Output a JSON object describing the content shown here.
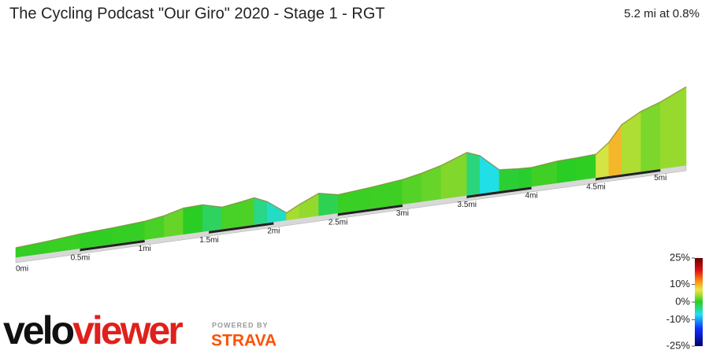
{
  "chart_data": {
    "type": "profile",
    "title": "The Cycling Podcast \"Our Giro\" 2020 - Stage 1 - RGT",
    "subtitle": "5.2 mi at 0.8%",
    "x": [
      0,
      0.25,
      0.5,
      0.75,
      1.0,
      1.15,
      1.3,
      1.45,
      1.6,
      1.75,
      1.85,
      1.95,
      2.1,
      2.2,
      2.35,
      2.5,
      2.75,
      3.0,
      3.15,
      3.3,
      3.5,
      3.6,
      3.75,
      3.9,
      4.0,
      4.2,
      4.35,
      4.5,
      4.6,
      4.7,
      4.85,
      5.0,
      5.2
    ],
    "values": [
      0,
      7,
      16,
      21,
      28,
      37,
      53,
      55,
      39,
      48,
      55,
      37,
      -7,
      14,
      41,
      28,
      37,
      48,
      60,
      76,
      106,
      90,
      37,
      32,
      30,
      39,
      41,
      44,
      76,
      127,
      161,
      182,
      219
    ],
    "xlim": [
      0,
      5.2
    ],
    "xticks": [
      {
        "value": 0,
        "label": "0mi"
      },
      {
        "value": 0.5,
        "label": "0.5mi"
      },
      {
        "value": 1,
        "label": "1mi"
      },
      {
        "value": 1.5,
        "label": "1.5mi"
      },
      {
        "value": 2,
        "label": "2mi"
      },
      {
        "value": 2.5,
        "label": "2.5mi"
      },
      {
        "value": 3,
        "label": "3mi"
      },
      {
        "value": 3.5,
        "label": "3.5mi"
      },
      {
        "value": 4,
        "label": "4mi"
      },
      {
        "value": 4.5,
        "label": "4.5mi"
      },
      {
        "value": 5,
        "label": "5mi"
      }
    ],
    "gradient_scale": {
      "lim": [
        -25,
        25
      ],
      "ticks": [
        {
          "value": 25,
          "label": "25%"
        },
        {
          "value": 10,
          "label": "10%"
        },
        {
          "value": 0,
          "label": "0%"
        },
        {
          "value": -10,
          "label": "-10%"
        },
        {
          "value": -25,
          "label": "-25%"
        }
      ],
      "stops": [
        {
          "value": -25,
          "color": "#00006e"
        },
        {
          "value": -15,
          "color": "#1030ff"
        },
        {
          "value": -7,
          "color": "#20e0f0"
        },
        {
          "value": -1,
          "color": "#30d040"
        },
        {
          "value": 0,
          "color": "#22cc22"
        },
        {
          "value": 4,
          "color": "#a8dc30"
        },
        {
          "value": 7,
          "color": "#e8e84a"
        },
        {
          "value": 12,
          "color": "#ff8c10"
        },
        {
          "value": 18,
          "color": "#dd1010"
        },
        {
          "value": 25,
          "color": "#6a0000"
        }
      ]
    }
  },
  "branding": {
    "velo": "velo",
    "viewer": "viewer",
    "powered_by": "POWERED BY",
    "strava": "STRAVA"
  }
}
